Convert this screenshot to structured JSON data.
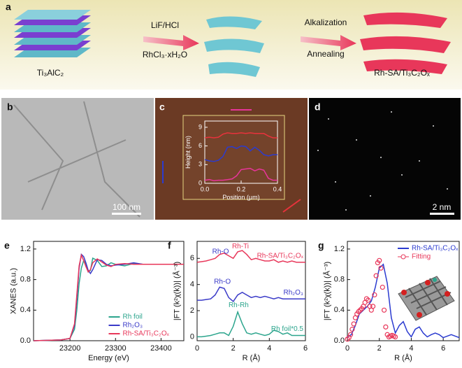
{
  "panels": {
    "a": {
      "label": "a",
      "start": "Ti₃AlC₂",
      "step1_top": "LiF/HCl",
      "step1_bottom": "RhCl₃·xH₂O",
      "step2_top": "Alkalization",
      "step2_bottom": "Annealing",
      "end": "Rh-SA/Ti₃C₂Oₓ"
    },
    "b": {
      "label": "b",
      "scale": "100 nm"
    },
    "d": {
      "label": "d",
      "scale": "2 nm"
    }
  },
  "chart_data": [
    {
      "type": "line",
      "panel": "c",
      "xlabel": "Position (μm)",
      "ylabel": "Height (nm)",
      "xlim": [
        0,
        0.4
      ],
      "xticks": [
        {
          "value": 0,
          "label": "0.0"
        },
        0.2,
        0.4
      ],
      "ylim": [
        0,
        10
      ],
      "yticks": [
        0,
        3,
        6,
        9
      ],
      "x": [
        0,
        0.025,
        0.05,
        0.075,
        0.1,
        0.125,
        0.15,
        0.175,
        0.2,
        0.225,
        0.25,
        0.275,
        0.3,
        0.325,
        0.35,
        0.375,
        0.4
      ],
      "series": [
        {
          "color": "#e8323c",
          "values": [
            7.3,
            7.4,
            7.3,
            7.4,
            7.9,
            8.1,
            8.0,
            8.0,
            8.1,
            8.0,
            8.1,
            8.0,
            8.0,
            8.0,
            7.6,
            7.3,
            7.3
          ]
        },
        {
          "color": "#2b3bd0",
          "values": [
            3.8,
            3.6,
            3.5,
            3.7,
            4.3,
            5.8,
            5.9,
            5.6,
            6.0,
            5.9,
            5.2,
            5.8,
            5.3,
            4.6,
            4.4,
            4.6,
            4.6
          ]
        },
        {
          "color": "#e8359a",
          "values": [
            0.5,
            0.6,
            0.4,
            0.5,
            0.5,
            0.6,
            0.7,
            1.2,
            2.2,
            2.3,
            2.4,
            2.0,
            2.3,
            2.1,
            0.8,
            0.5,
            0.5
          ]
        }
      ]
    },
    {
      "type": "line",
      "panel": "e",
      "xlabel": "Energy (eV)",
      "ylabel": "XANES (a.u.)",
      "xlim": [
        23120,
        23450
      ],
      "xticks": [
        23200,
        23300,
        23400
      ],
      "ylim": [
        0,
        1.3
      ],
      "yticks": [
        {
          "value": 0,
          "label": "0.0"
        },
        0.4,
        0.8,
        1.2
      ],
      "legend": "lower right",
      "x": [
        23120,
        23180,
        23200,
        23210,
        23215,
        23220,
        23225,
        23230,
        23235,
        23240,
        23245,
        23250,
        23260,
        23270,
        23280,
        23290,
        23300,
        23320,
        23340,
        23360,
        23400,
        23450
      ],
      "series": [
        {
          "name": "Rh foil",
          "color": "#2ca58d",
          "values": [
            0,
            0.01,
            0.03,
            0.15,
            0.4,
            0.75,
            0.95,
            1.05,
            1.0,
            0.9,
            0.92,
            1.08,
            1.05,
            0.97,
            0.98,
            1.02,
            1.0,
            0.98,
            1.01,
            1.0,
            1.0,
            1.0
          ]
        },
        {
          "name": "Rh₂O₃",
          "color": "#3a3ac8",
          "values": [
            0,
            0.01,
            0.03,
            0.2,
            0.55,
            0.95,
            1.13,
            1.1,
            1.02,
            0.92,
            0.88,
            0.93,
            1.06,
            1.05,
            1.0,
            0.98,
            0.99,
            1.0,
            1.02,
            1.0,
            1.0,
            1.0
          ]
        },
        {
          "name": "Rh-SA/Ti₃C₂Oₓ",
          "color": "#e8375a",
          "values": [
            0,
            0.01,
            0.03,
            0.22,
            0.6,
            0.98,
            1.12,
            1.05,
            0.97,
            0.9,
            0.93,
            1.02,
            1.07,
            1.03,
            0.99,
            0.97,
            1.0,
            1.01,
            1.0,
            1.0,
            1.0,
            1.0
          ]
        }
      ]
    },
    {
      "type": "line",
      "panel": "f",
      "xlabel": "R (Å)",
      "ylabel": "|FT (k²χ(k))| (Å⁻³)",
      "xlim": [
        0,
        6
      ],
      "xticks": [
        0,
        2,
        4,
        6
      ],
      "ylim": [
        -0.3,
        7.3
      ],
      "yticks": [
        0,
        2,
        4,
        6
      ],
      "legend": "inline",
      "annotations": [
        "Rh-Ti",
        "Rh-O",
        "Rh-O",
        "Rh-Rh"
      ],
      "x": [
        0,
        0.25,
        0.5,
        0.75,
        1,
        1.25,
        1.5,
        1.75,
        2,
        2.25,
        2.5,
        2.75,
        3,
        3.25,
        3.5,
        3.75,
        4,
        4.25,
        4.5,
        4.75,
        5,
        5.25,
        5.5,
        5.75,
        6
      ],
      "series": [
        {
          "name": "Rh-SA/Ti₃C₂Oₓ",
          "color": "#e8375a",
          "values": [
            5.7,
            5.75,
            5.8,
            5.9,
            6.0,
            6.3,
            6.4,
            6.2,
            6.0,
            6.5,
            6.6,
            6.3,
            5.9,
            6.0,
            5.9,
            5.8,
            5.8,
            5.9,
            5.7,
            5.8,
            5.7,
            5.8,
            5.7,
            5.7,
            5.7
          ]
        },
        {
          "name": "Rh₂O₃",
          "color": "#3a3ac8",
          "values": [
            2.8,
            2.8,
            2.85,
            2.9,
            3.2,
            3.8,
            3.7,
            3.0,
            2.7,
            3.2,
            3.4,
            3.2,
            3.0,
            3.1,
            3.0,
            3.1,
            3.0,
            2.9,
            3.0,
            2.9,
            2.9,
            2.9,
            2.9,
            2.9,
            2.9
          ]
        },
        {
          "name": "Rh foil*0.5",
          "color": "#2ca58d",
          "values": [
            0,
            0,
            0.05,
            0.1,
            0.2,
            0.3,
            0.3,
            0.1,
            0.8,
            1.9,
            1.0,
            0.3,
            0.2,
            0.3,
            0.2,
            0.1,
            0.2,
            0.5,
            0.4,
            0.2,
            0.3,
            0.1,
            0.1,
            0.1,
            0.1
          ]
        }
      ]
    },
    {
      "type": "line",
      "panel": "g",
      "xlabel": "R (Å)",
      "ylabel": "|FT (k²χ(k))| (Å⁻³)",
      "xlim": [
        0,
        7
      ],
      "xticks": [
        0,
        2,
        4,
        6
      ],
      "ylim": [
        0,
        1.3
      ],
      "yticks": [
        {
          "value": 0,
          "label": "0.0"
        },
        0.4,
        0.8,
        1.2
      ],
      "legend": "upper right",
      "series": [
        {
          "name": "Rh-SA/Ti₃C₂Oₓ",
          "color": "#2b3bd0",
          "marker": "none",
          "x": [
            0,
            0.25,
            0.5,
            0.75,
            1,
            1.25,
            1.5,
            1.75,
            2,
            2.25,
            2.5,
            2.75,
            3,
            3.25,
            3.5,
            3.75,
            4,
            4.25,
            4.5,
            4.75,
            5,
            5.25,
            5.5,
            5.75,
            6,
            6.25,
            6.5,
            6.75,
            7
          ],
          "values": [
            0.05,
            0.08,
            0.2,
            0.35,
            0.4,
            0.45,
            0.52,
            0.7,
            0.95,
            1.0,
            0.75,
            0.3,
            0.1,
            0.2,
            0.25,
            0.12,
            0.05,
            0.15,
            0.18,
            0.1,
            0.05,
            0.08,
            0.1,
            0.08,
            0.04,
            0.06,
            0.08,
            0.06,
            0.04
          ]
        },
        {
          "name": "Fitting",
          "color": "#e8375a",
          "marker": "open-circle",
          "x": [
            0,
            0.1,
            0.2,
            0.3,
            0.4,
            0.5,
            0.6,
            0.7,
            0.8,
            0.9,
            1,
            1.1,
            1.2,
            1.3,
            1.4,
            1.5,
            1.6,
            1.7,
            1.8,
            1.9,
            2,
            2.1,
            2.2,
            2.3,
            2.4,
            2.5,
            2.6,
            2.7,
            2.8,
            2.9,
            3
          ],
          "values": [
            0.02,
            0.04,
            0.08,
            0.15,
            0.22,
            0.3,
            0.35,
            0.38,
            0.4,
            0.42,
            0.45,
            0.5,
            0.55,
            0.53,
            0.45,
            0.4,
            0.45,
            0.6,
            0.85,
            1.02,
            1.05,
            0.95,
            0.7,
            0.4,
            0.18,
            0.08,
            0.05,
            0.06,
            0.07,
            0.06,
            0.05
          ]
        }
      ]
    }
  ]
}
